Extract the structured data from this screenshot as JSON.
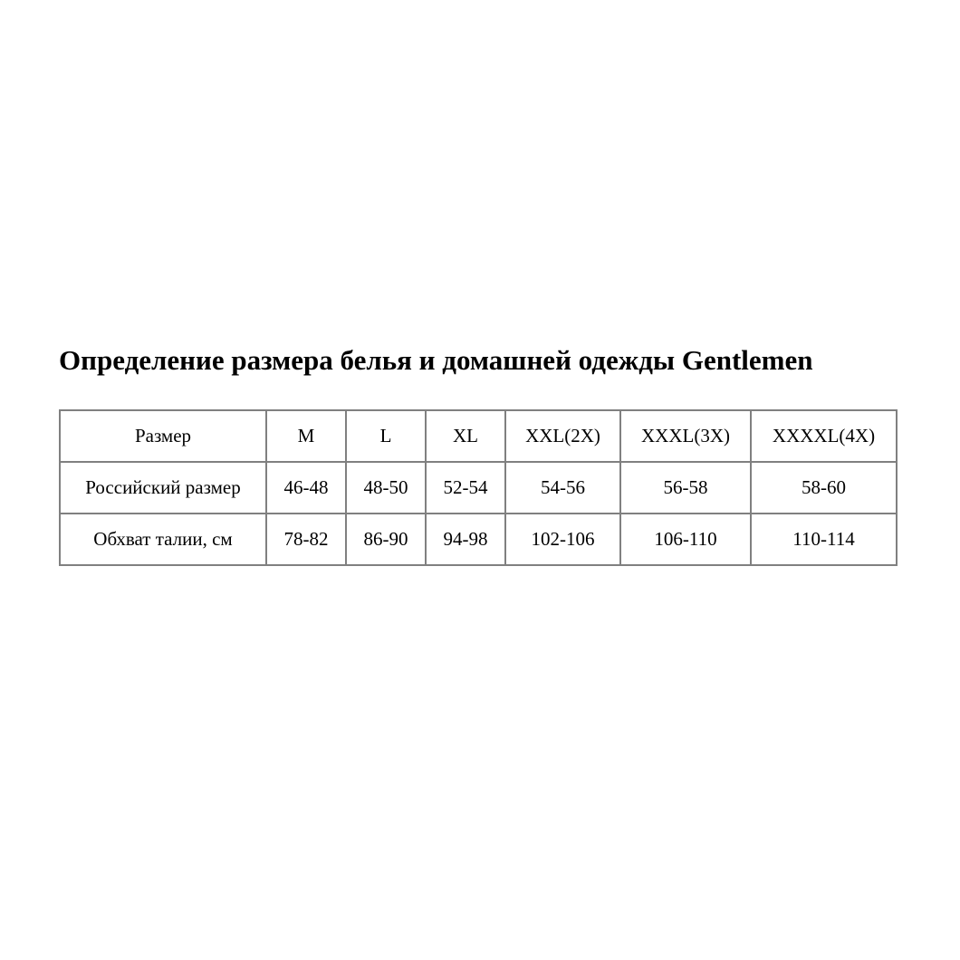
{
  "title": "Определение размера белья и домашней одежды Gentlemen",
  "table": {
    "rows": [
      [
        "Размер",
        "M",
        "L",
        "XL",
        "XXL(2X)",
        "XXXL(3X)",
        "XXXXL(4X)"
      ],
      [
        "Российский размер",
        "46-48",
        "48-50",
        "52-54",
        "54-56",
        "56-58",
        "58-60"
      ],
      [
        "Обхват талии, см",
        "78-82",
        "86-90",
        "94-98",
        "102-106",
        "106-110",
        "110-114"
      ]
    ]
  },
  "colors": {
    "border": "#808080",
    "text": "#000000"
  }
}
